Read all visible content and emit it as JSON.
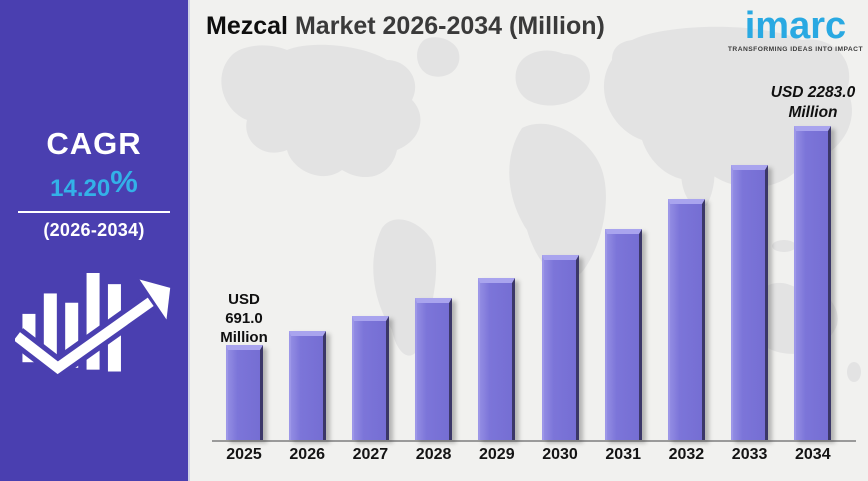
{
  "sidebar": {
    "cagr_label": "CAGR",
    "cagr_value": "14.20",
    "cagr_percent_sign": "%",
    "period": "(2026-2034)",
    "background_color": "#4a3fb0",
    "accent_color": "#33b1e8"
  },
  "header": {
    "title_primary": "Mezcal",
    "title_rest": "Market 2026-2034 (Million)"
  },
  "logo": {
    "brand": "imarc",
    "tagline": "TRANSFORMING IDEAS INTO IMPACT",
    "brand_color": "#29a9e2"
  },
  "chart_data": {
    "type": "bar",
    "title": "Mezcal Market 2026-2034 (Million)",
    "categories": [
      "2025",
      "2026",
      "2027",
      "2028",
      "2029",
      "2030",
      "2031",
      "2032",
      "2033",
      "2034"
    ],
    "values": [
      691,
      789,
      901,
      1029,
      1175,
      1342,
      1533,
      1750,
      1999,
      2283
    ],
    "unit": "USD Million",
    "ylim": [
      0,
      2400
    ],
    "grid": false,
    "legend": false,
    "bar_color": "#7c75d9",
    "bar_bevel_color": "#a9a4ee",
    "bar_edge_color": "#3b3768",
    "first_bar_label_text": "USD\n691.0\nMillion",
    "last_bar_label_text": "USD 2283.0\nMillion",
    "visible_value_labels": {
      "2025": "USD 691.0 Million",
      "2034": "USD 2283.0 Million"
    }
  }
}
